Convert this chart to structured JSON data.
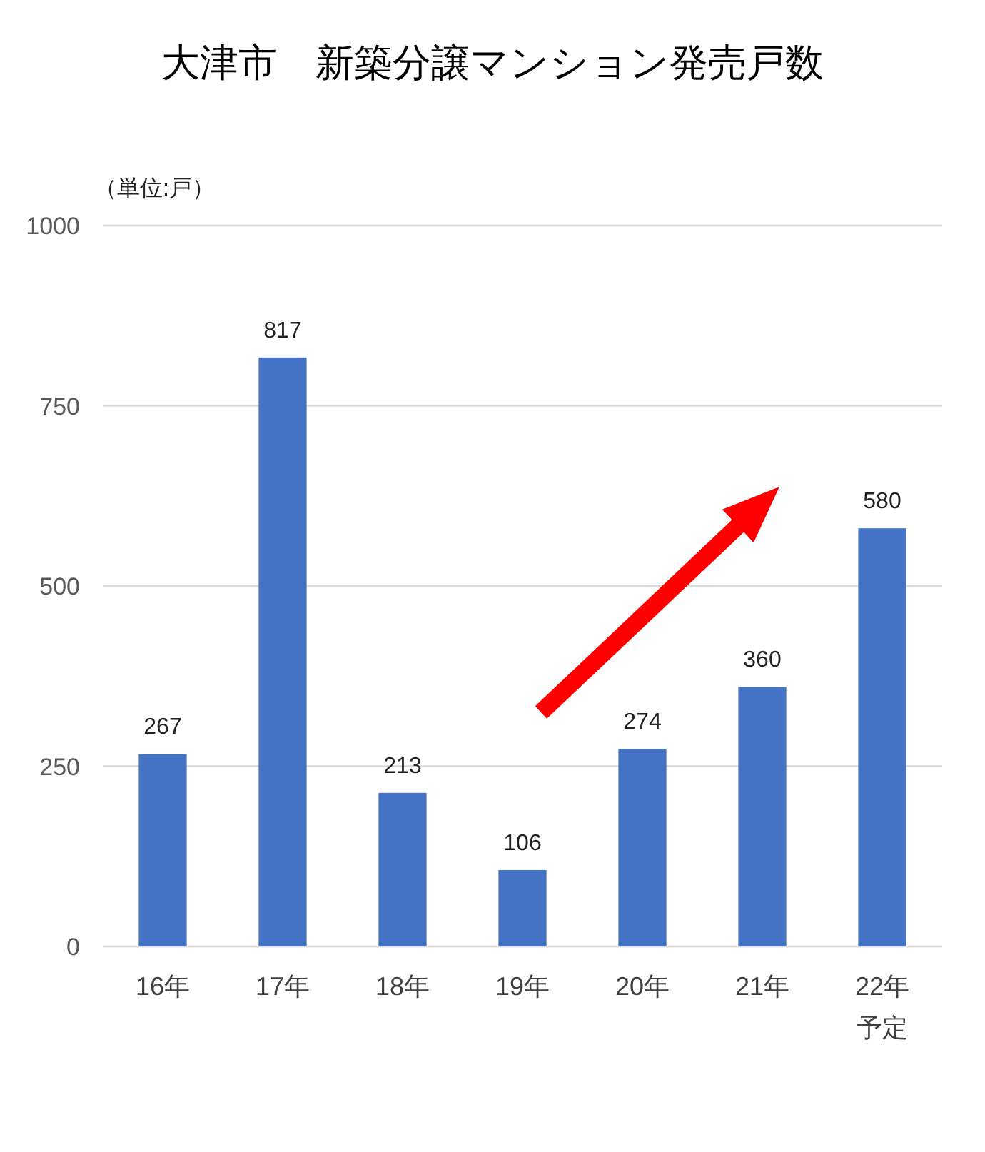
{
  "chart_data": {
    "type": "bar",
    "title": "大津市　新築分譲マンション発売戸数",
    "ylabel": "（単位:戸）",
    "categories": [
      "16年",
      "17年",
      "18年",
      "19年",
      "20年",
      "21年",
      "22年予定"
    ],
    "values": [
      267,
      817,
      213,
      106,
      274,
      360,
      580
    ],
    "color": "#4472c4",
    "ylim": [
      0,
      1000
    ],
    "yticks": [
      0,
      250,
      500,
      750,
      1000
    ],
    "grid": "y",
    "data_labels": true
  }
}
